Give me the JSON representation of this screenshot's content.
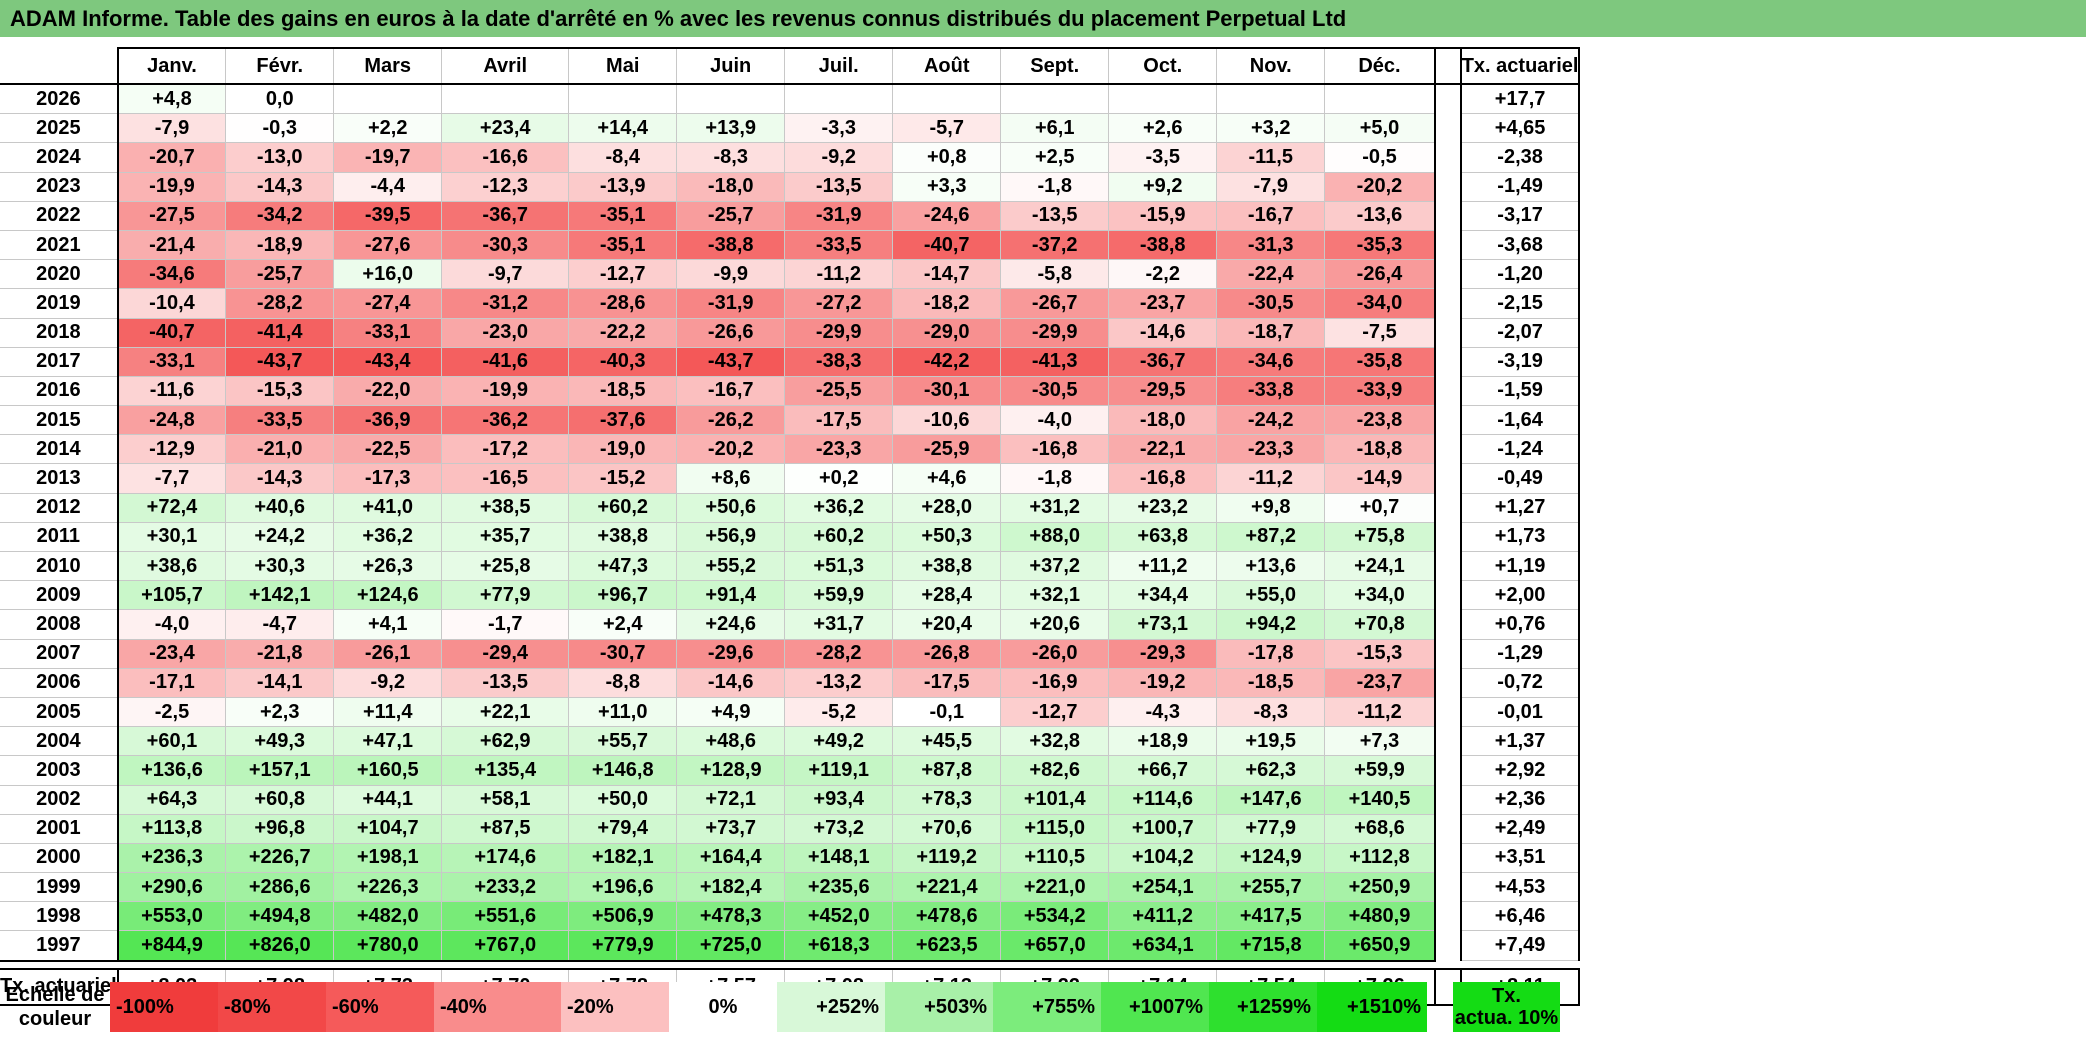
{
  "title": "ADAM Informe. Table des gains en euros à la date d'arrêté en % avec les revenus connus distribués du placement Perpetual Ltd",
  "months": [
    "Janv.",
    "Févr.",
    "Mars",
    "Avril",
    "Mai",
    "Juin",
    "Juil.",
    "Août",
    "Sept.",
    "Oct.",
    "Nov.",
    "Déc."
  ],
  "actuarial_header": "Tx. actuariel",
  "rows": [
    {
      "year": "2026",
      "values": [
        "+4,8",
        "0,0",
        "",
        "",
        "",
        "",
        "",
        "",
        "",
        "",
        "",
        ""
      ],
      "act": "+17,7"
    },
    {
      "year": "2025",
      "values": [
        "-7,9",
        "-0,3",
        "+2,2",
        "+23,4",
        "+14,4",
        "+13,9",
        "-3,3",
        "-5,7",
        "+6,1",
        "+2,6",
        "+3,2",
        "+5,0"
      ],
      "act": "+4,65"
    },
    {
      "year": "2024",
      "values": [
        "-20,7",
        "-13,0",
        "-19,7",
        "-16,6",
        "-8,4",
        "-8,3",
        "-9,2",
        "+0,8",
        "+2,5",
        "-3,5",
        "-11,5",
        "-0,5"
      ],
      "act": "-2,38"
    },
    {
      "year": "2023",
      "values": [
        "-19,9",
        "-14,3",
        "-4,4",
        "-12,3",
        "-13,9",
        "-18,0",
        "-13,5",
        "+3,3",
        "-1,8",
        "+9,2",
        "-7,9",
        "-20,2"
      ],
      "act": "-1,49"
    },
    {
      "year": "2022",
      "values": [
        "-27,5",
        "-34,2",
        "-39,5",
        "-36,7",
        "-35,1",
        "-25,7",
        "-31,9",
        "-24,6",
        "-13,5",
        "-15,9",
        "-16,7",
        "-13,6"
      ],
      "act": "-3,17"
    },
    {
      "year": "2021",
      "values": [
        "-21,4",
        "-18,9",
        "-27,6",
        "-30,3",
        "-35,1",
        "-38,8",
        "-33,5",
        "-40,7",
        "-37,2",
        "-38,8",
        "-31,3",
        "-35,3"
      ],
      "act": "-3,68"
    },
    {
      "year": "2020",
      "values": [
        "-34,6",
        "-25,7",
        "+16,0",
        "-9,7",
        "-12,7",
        "-9,9",
        "-11,2",
        "-14,7",
        "-5,8",
        "-2,2",
        "-22,4",
        "-26,4"
      ],
      "act": "-1,20"
    },
    {
      "year": "2019",
      "values": [
        "-10,4",
        "-28,2",
        "-27,4",
        "-31,2",
        "-28,6",
        "-31,9",
        "-27,2",
        "-18,2",
        "-26,7",
        "-23,7",
        "-30,5",
        "-34,0"
      ],
      "act": "-2,15"
    },
    {
      "year": "2018",
      "values": [
        "-40,7",
        "-41,4",
        "-33,1",
        "-23,0",
        "-22,2",
        "-26,6",
        "-29,9",
        "-29,0",
        "-29,9",
        "-14,6",
        "-18,7",
        "-7,5"
      ],
      "act": "-2,07"
    },
    {
      "year": "2017",
      "values": [
        "-33,1",
        "-43,7",
        "-43,4",
        "-41,6",
        "-40,3",
        "-43,7",
        "-38,3",
        "-42,2",
        "-41,3",
        "-36,7",
        "-34,6",
        "-35,8"
      ],
      "act": "-3,19"
    },
    {
      "year": "2016",
      "values": [
        "-11,6",
        "-15,3",
        "-22,0",
        "-19,9",
        "-18,5",
        "-16,7",
        "-25,5",
        "-30,1",
        "-30,5",
        "-29,5",
        "-33,8",
        "-33,9"
      ],
      "act": "-1,59"
    },
    {
      "year": "2015",
      "values": [
        "-24,8",
        "-33,5",
        "-36,9",
        "-36,2",
        "-37,6",
        "-26,2",
        "-17,5",
        "-10,6",
        "-4,0",
        "-18,0",
        "-24,2",
        "-23,8"
      ],
      "act": "-1,64"
    },
    {
      "year": "2014",
      "values": [
        "-12,9",
        "-21,0",
        "-22,5",
        "-17,2",
        "-19,0",
        "-20,2",
        "-23,3",
        "-25,9",
        "-16,8",
        "-22,1",
        "-23,3",
        "-18,8"
      ],
      "act": "-1,24"
    },
    {
      "year": "2013",
      "values": [
        "-7,7",
        "-14,3",
        "-17,3",
        "-16,5",
        "-15,2",
        "+8,6",
        "+0,2",
        "+4,6",
        "-1,8",
        "-16,8",
        "-11,2",
        "-14,9"
      ],
      "act": "-0,49"
    },
    {
      "year": "2012",
      "values": [
        "+72,4",
        "+40,6",
        "+41,0",
        "+38,5",
        "+60,2",
        "+50,6",
        "+36,2",
        "+28,0",
        "+31,2",
        "+23,2",
        "+9,8",
        "+0,7"
      ],
      "act": "+1,27"
    },
    {
      "year": "2011",
      "values": [
        "+30,1",
        "+24,2",
        "+36,2",
        "+35,7",
        "+38,8",
        "+56,9",
        "+60,2",
        "+50,3",
        "+88,0",
        "+63,8",
        "+87,2",
        "+75,8"
      ],
      "act": "+1,73"
    },
    {
      "year": "2010",
      "values": [
        "+38,6",
        "+30,3",
        "+26,3",
        "+25,8",
        "+47,3",
        "+55,2",
        "+51,3",
        "+38,8",
        "+37,2",
        "+11,2",
        "+13,6",
        "+24,1"
      ],
      "act": "+1,19"
    },
    {
      "year": "2009",
      "values": [
        "+105,7",
        "+142,1",
        "+124,6",
        "+77,9",
        "+96,7",
        "+91,4",
        "+59,9",
        "+28,4",
        "+32,1",
        "+34,4",
        "+55,0",
        "+34,0"
      ],
      "act": "+2,00"
    },
    {
      "year": "2008",
      "values": [
        "-4,0",
        "-4,7",
        "+4,1",
        "-1,7",
        "+2,4",
        "+24,6",
        "+31,7",
        "+20,4",
        "+20,6",
        "+73,1",
        "+94,2",
        "+70,8"
      ],
      "act": "+0,76"
    },
    {
      "year": "2007",
      "values": [
        "-23,4",
        "-21,8",
        "-26,1",
        "-29,4",
        "-30,7",
        "-29,6",
        "-28,2",
        "-26,8",
        "-26,0",
        "-29,3",
        "-17,8",
        "-15,3"
      ],
      "act": "-1,29"
    },
    {
      "year": "2006",
      "values": [
        "-17,1",
        "-14,1",
        "-9,2",
        "-13,5",
        "-8,8",
        "-14,6",
        "-13,2",
        "-17,5",
        "-16,9",
        "-19,2",
        "-18,5",
        "-23,7"
      ],
      "act": "-0,72"
    },
    {
      "year": "2005",
      "values": [
        "-2,5",
        "+2,3",
        "+11,4",
        "+22,1",
        "+11,0",
        "+4,9",
        "-5,2",
        "-0,1",
        "-12,7",
        "-4,3",
        "-8,3",
        "-11,2"
      ],
      "act": "-0,01"
    },
    {
      "year": "2004",
      "values": [
        "+60,1",
        "+49,3",
        "+47,1",
        "+62,9",
        "+55,7",
        "+48,6",
        "+49,2",
        "+45,5",
        "+32,8",
        "+18,9",
        "+19,5",
        "+7,3"
      ],
      "act": "+1,37"
    },
    {
      "year": "2003",
      "values": [
        "+136,6",
        "+157,1",
        "+160,5",
        "+135,4",
        "+146,8",
        "+128,9",
        "+119,1",
        "+87,8",
        "+82,6",
        "+66,7",
        "+62,3",
        "+59,9"
      ],
      "act": "+2,92"
    },
    {
      "year": "2002",
      "values": [
        "+64,3",
        "+60,8",
        "+44,1",
        "+58,1",
        "+50,0",
        "+72,1",
        "+93,4",
        "+78,3",
        "+101,4",
        "+114,6",
        "+147,6",
        "+140,5"
      ],
      "act": "+2,36"
    },
    {
      "year": "2001",
      "values": [
        "+113,8",
        "+96,8",
        "+104,7",
        "+87,5",
        "+79,4",
        "+73,7",
        "+73,2",
        "+70,6",
        "+115,0",
        "+100,7",
        "+77,9",
        "+68,6"
      ],
      "act": "+2,49"
    },
    {
      "year": "2000",
      "values": [
        "+236,3",
        "+226,7",
        "+198,1",
        "+174,6",
        "+182,1",
        "+164,4",
        "+148,1",
        "+119,2",
        "+110,5",
        "+104,2",
        "+124,9",
        "+112,8"
      ],
      "act": "+3,51"
    },
    {
      "year": "1999",
      "values": [
        "+290,6",
        "+286,6",
        "+226,3",
        "+233,2",
        "+196,6",
        "+182,4",
        "+235,6",
        "+221,4",
        "+221,0",
        "+254,1",
        "+255,7",
        "+250,9"
      ],
      "act": "+4,53"
    },
    {
      "year": "1998",
      "values": [
        "+553,0",
        "+494,8",
        "+482,0",
        "+551,6",
        "+506,9",
        "+478,3",
        "+452,0",
        "+478,6",
        "+534,2",
        "+411,2",
        "+417,5",
        "+480,9"
      ],
      "act": "+6,46"
    },
    {
      "year": "1997",
      "values": [
        "+844,9",
        "+826,0",
        "+780,0",
        "+767,0",
        "+779,9",
        "+725,0",
        "+618,3",
        "+623,5",
        "+657,0",
        "+634,1",
        "+715,8",
        "+650,9"
      ],
      "act": "+7,49"
    }
  ],
  "summary": {
    "label": "Tx. actuariel",
    "values": [
      "+8,03",
      "+7,98",
      "+7,73",
      "+7,70",
      "+7,78",
      "+7,57",
      "+7,08",
      "+7,13",
      "+7,22",
      "+7,14",
      "+7,54",
      "+7,26"
    ],
    "act": "+8,11"
  },
  "scale": {
    "label_line1": "Echelle de",
    "label_line2": "couleur",
    "steps": [
      {
        "text": "-100%",
        "color": "#f03c3c",
        "align": "left"
      },
      {
        "text": "-80%",
        "color": "#f24848",
        "align": "left"
      },
      {
        "text": "-60%",
        "color": "#f55a5a",
        "align": "left"
      },
      {
        "text": "-40%",
        "color": "#f98c8c",
        "align": "left"
      },
      {
        "text": "-20%",
        "color": "#fcc0c0",
        "align": "left"
      },
      {
        "text": "0%",
        "color": "#ffffff",
        "align": "center"
      },
      {
        "text": "+252%",
        "color": "#d8f8d8",
        "align": "right"
      },
      {
        "text": "+503%",
        "color": "#a8f0a8",
        "align": "right"
      },
      {
        "text": "+755%",
        "color": "#7cec7c",
        "align": "right"
      },
      {
        "text": "+1007%",
        "color": "#50e650",
        "align": "right"
      },
      {
        "text": "+1259%",
        "color": "#2ee02e",
        "align": "right"
      },
      {
        "text": "+1510%",
        "color": "#14dc14",
        "align": "right"
      }
    ],
    "act_line1": "Tx.",
    "act_line2": "actua. 10%",
    "act_color": "#14dc14"
  },
  "colors": {
    "title_bg": "#7ec87e",
    "negative_max": "#f24040",
    "positive_max": "#14dc14"
  }
}
